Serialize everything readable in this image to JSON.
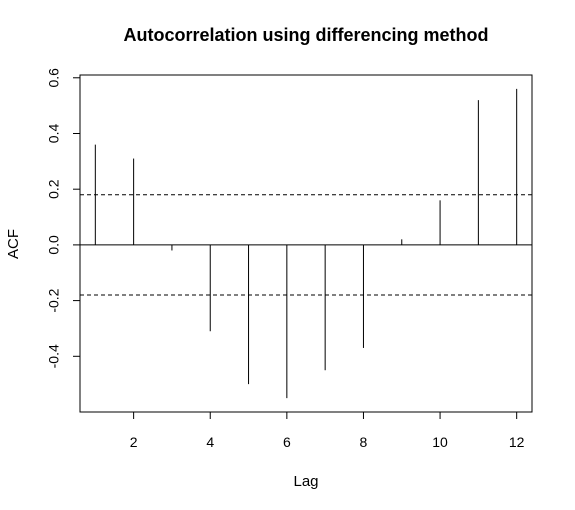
{
  "chart_data": {
    "type": "bar",
    "title": "Autocorrelation using differencing method",
    "xlabel": "Lag",
    "ylabel": "ACF",
    "xlim": [
      0.6,
      12.4
    ],
    "ylim": [
      -0.6,
      0.61
    ],
    "x_ticks": [
      2,
      4,
      6,
      8,
      10,
      12
    ],
    "y_ticks": [
      -0.4,
      -0.2,
      0.0,
      0.2,
      0.4,
      0.6
    ],
    "y_tick_labels": [
      "-0.4",
      "-0.2",
      "0.0",
      "0.2",
      "0.4",
      "0.6"
    ],
    "lags": [
      1,
      2,
      3,
      4,
      5,
      6,
      7,
      8,
      9,
      10,
      11,
      12
    ],
    "values": [
      0.36,
      0.31,
      -0.02,
      -0.31,
      -0.5,
      -0.55,
      -0.45,
      -0.37,
      0.02,
      0.16,
      0.52,
      0.56
    ],
    "confidence_limits": [
      0.18,
      -0.18
    ],
    "zero_line": 0,
    "colors": {
      "line": "#000000",
      "background": "#ffffff"
    }
  }
}
